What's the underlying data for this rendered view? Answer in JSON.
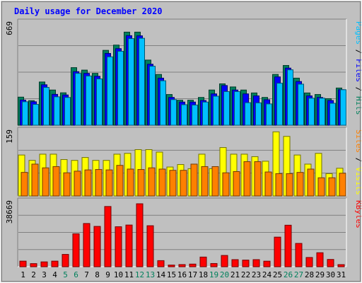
{
  "chart_data": {
    "type": "bar",
    "title": "Daily usage for December 2020",
    "categories": [
      "1",
      "2",
      "3",
      "4",
      "5",
      "6",
      "7",
      "8",
      "9",
      "10",
      "11",
      "12",
      "13",
      "14",
      "15",
      "16",
      "17",
      "18",
      "19",
      "20",
      "21",
      "22",
      "23",
      "24",
      "25",
      "26",
      "27",
      "28",
      "29",
      "30",
      "31"
    ],
    "weekend_days": [
      "5",
      "6",
      "12",
      "13",
      "19",
      "20",
      "26",
      "27"
    ],
    "colors": {
      "hits": "#00805c",
      "files": "#0000ff",
      "pages": "#00c0ff",
      "visits": "#ffff00",
      "sites": "#ff8000",
      "kbytes": "#ff0000",
      "title": "#0000ff",
      "weekend_label": "#00805c",
      "weekday_label": "#000000"
    },
    "panels": [
      {
        "id": "top",
        "ymax_label": "669",
        "ymax": 669,
        "legend": [
          {
            "label": "Pages",
            "color": "#00c0ff"
          },
          {
            "label": "Files",
            "color": "#0000ff"
          },
          {
            "label": "Hits",
            "color": "#00805c"
          }
        ],
        "series": [
          {
            "name": "Hits",
            "values": [
              182,
              159,
              280,
              228,
              210,
              373,
              357,
              336,
              485,
              519,
              603,
              603,
              422,
              329,
              199,
              162,
              162,
              180,
              228,
              268,
              248,
              228,
              209,
              180,
              329,
              387,
              305,
              209,
              199,
              172,
              241
            ]
          },
          {
            "name": "Files",
            "values": [
              163,
              152,
              262,
              200,
              196,
              347,
              336,
              317,
              465,
              496,
              580,
              579,
              395,
              305,
              180,
              150,
              150,
              160,
              203,
              257,
              228,
              203,
              190,
              165,
              313,
              370,
              283,
              190,
              180,
              160,
              230
            ]
          },
          {
            "name": "Pages",
            "values": [
              152,
              135,
              245,
              184,
              180,
              336,
              319,
              300,
              443,
              479,
              561,
              563,
              382,
              288,
              166,
              133,
              131,
              150,
              188,
              218,
              218,
              146,
              145,
              138,
              272,
              359,
              266,
              175,
              175,
              142,
              230
            ]
          }
        ]
      },
      {
        "id": "middle",
        "ymax_label": "159",
        "ymax": 159,
        "legend": [
          {
            "label": "Sites",
            "color": "#ff8000"
          },
          {
            "label": "Visits",
            "color": "#ffff00"
          }
        ],
        "series": [
          {
            "name": "Visits",
            "values": [
              99,
              86,
              101,
              101,
              88,
              86,
              93,
              86,
              86,
              101,
              103,
              112,
              112,
              106,
              70,
              76,
              66,
              101,
              66,
              117,
              101,
              101,
              95,
              84,
              155,
              144,
              99,
              77,
              103,
              54,
              67
            ]
          },
          {
            "name": "Sites",
            "values": [
              57,
              77,
              68,
              71,
              56,
              60,
              63,
              64,
              63,
              74,
              65,
              64,
              68,
              65,
              62,
              62,
              77,
              71,
              71,
              56,
              59,
              83,
              83,
              58,
              54,
              54,
              57,
              65,
              44,
              44,
              55
            ]
          }
        ]
      },
      {
        "id": "bottom",
        "ymax_label": "38669",
        "ymax": 38669,
        "legend": [
          {
            "label": "KBytes",
            "color": "#ff0000"
          }
        ],
        "series": [
          {
            "name": "KBytes",
            "values": [
              3283,
              1826,
              2848,
              3283,
              7240,
              19350,
              25400,
              23700,
              35400,
              23500,
              24500,
              37000,
              24100,
              3580,
              965,
              1263,
              1552,
              5680,
              1885,
              6625,
              4165,
              3895,
              4165,
              3260,
              17400,
              24400,
              13700,
              5430,
              8230,
              4275,
              1230
            ]
          }
        ]
      }
    ]
  }
}
